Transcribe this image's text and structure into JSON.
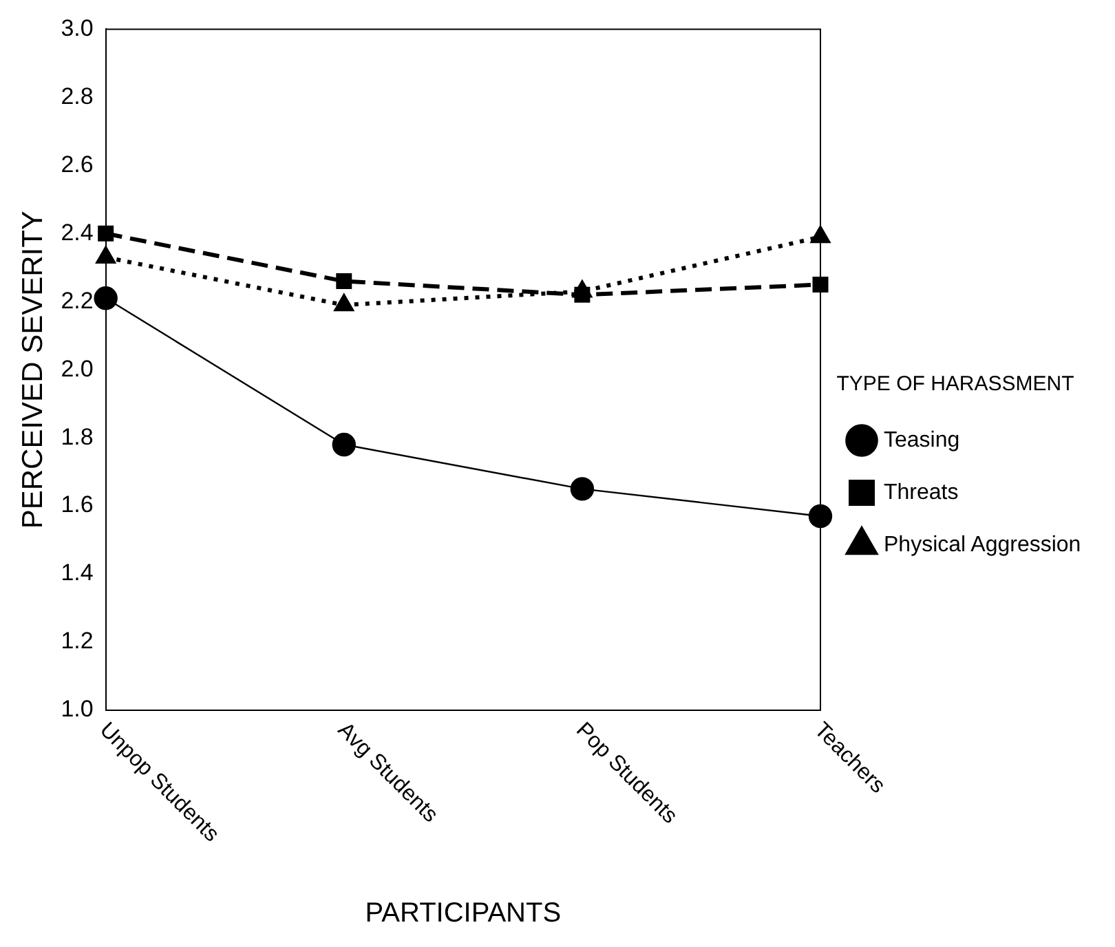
{
  "chart_data": {
    "type": "line",
    "xlabel": "PARTICIPANTS",
    "ylabel": "PERCEIVED SEVERITY",
    "legend_title": "TYPE OF HARASSMENT",
    "categories": [
      "Unpop Students",
      "Avg Students",
      "Pop Students",
      "Teachers"
    ],
    "series": [
      {
        "name": "Teasing",
        "color": "#000000",
        "marker": "circle",
        "line_style": "solid",
        "values": [
          2.21,
          1.78,
          1.65,
          1.57
        ]
      },
      {
        "name": "Threats",
        "color": "#000000",
        "marker": "square",
        "line_style": "dashed",
        "values": [
          2.4,
          2.26,
          2.22,
          2.25
        ]
      },
      {
        "name": "Physical Aggression",
        "color": "#000000",
        "marker": "triangle",
        "line_style": "dotted",
        "values": [
          2.33,
          2.19,
          2.23,
          2.39
        ]
      }
    ],
    "ylim": [
      1.0,
      3.0
    ],
    "yticks": [
      {
        "value": 1,
        "label": "1.0"
      },
      1.2,
      1.4,
      1.6,
      1.8,
      {
        "value": 2,
        "label": "2.0"
      },
      2.2,
      2.4,
      2.6,
      2.8,
      {
        "value": 3,
        "label": "3.0"
      }
    ],
    "grid": false,
    "legend": "right"
  }
}
